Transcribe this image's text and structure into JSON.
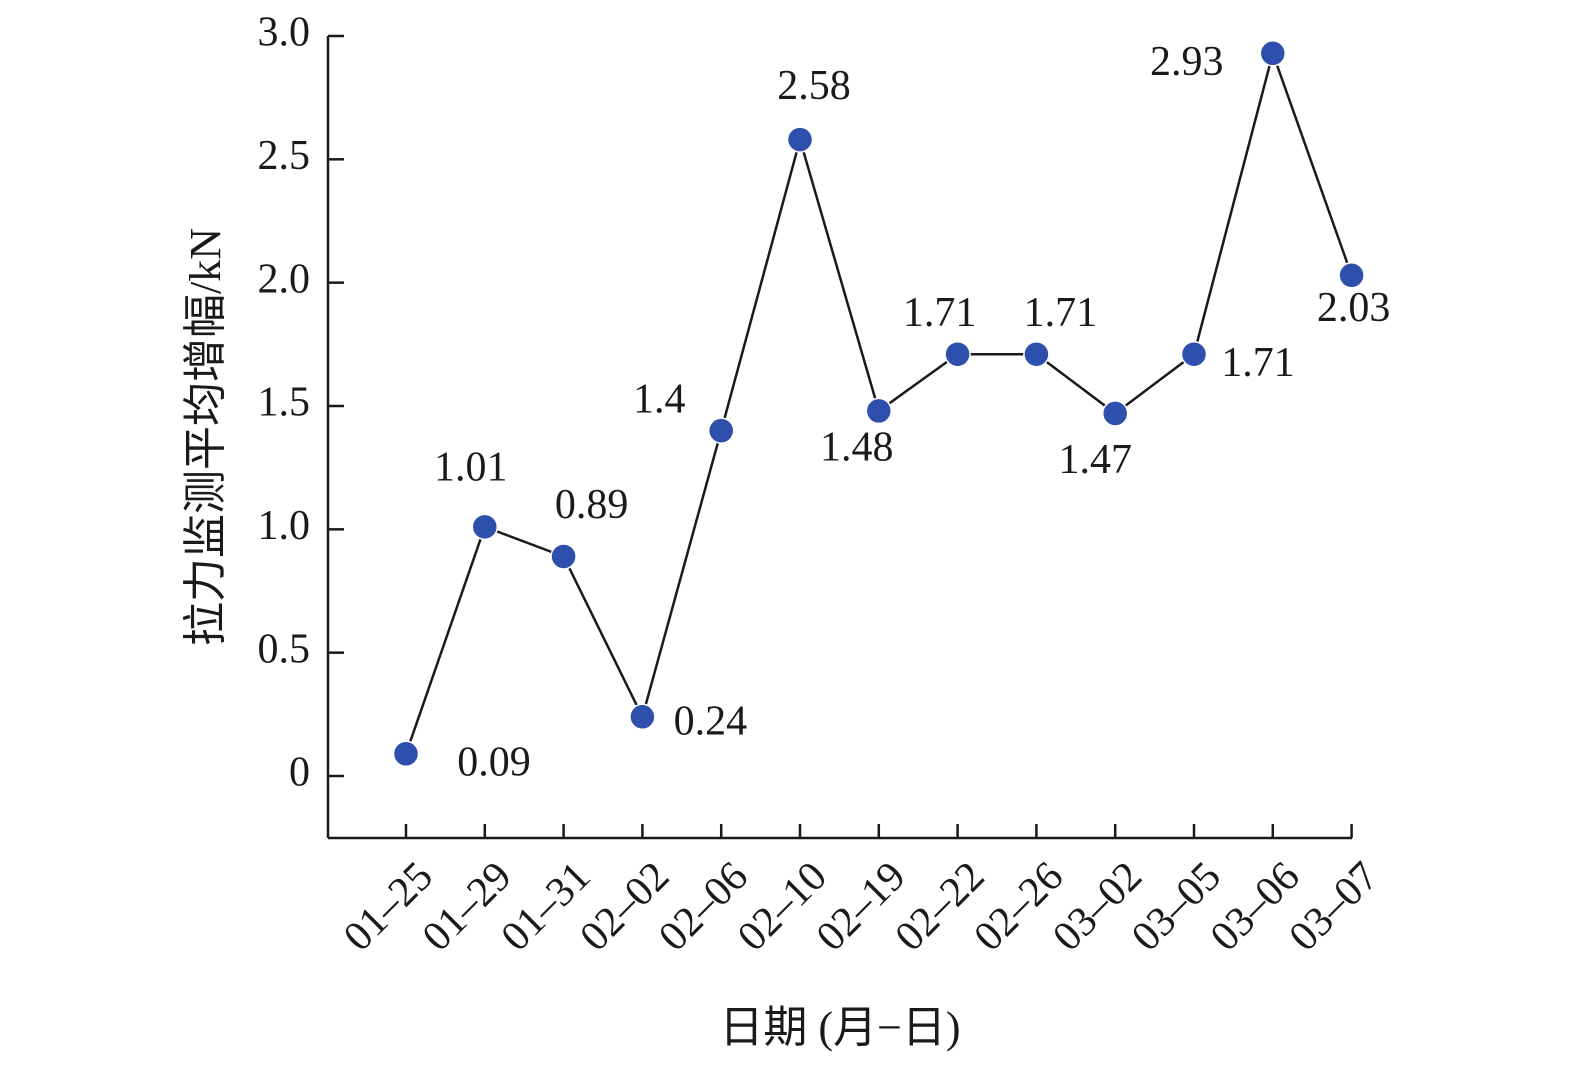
{
  "chart_data": {
    "type": "line",
    "xlabel": "日期 (月−日)",
    "ylabel": "拉力监测平均增幅/kN",
    "categories": [
      "01–25",
      "01–29",
      "01–31",
      "02–02",
      "02–06",
      "02–10",
      "02–19",
      "02–22",
      "02–26",
      "03–02",
      "03–05",
      "03–06",
      "03–07"
    ],
    "series": [
      {
        "values": [
          0.09,
          1.01,
          0.89,
          0.24,
          1.4,
          2.58,
          1.48,
          1.71,
          1.71,
          1.47,
          1.71,
          2.93,
          2.03
        ],
        "labels": [
          "0.09",
          "1.01",
          "0.89",
          "0.24",
          "1.4",
          "2.58",
          "1.48",
          "1.71",
          "1.71",
          "1.47",
          "1.71",
          "2.93",
          "2.03"
        ],
        "color": "#2f4fad"
      }
    ],
    "ylim": [
      -0.25,
      3.0
    ],
    "yticks": [
      0,
      0.5,
      1.0,
      1.5,
      2.0,
      2.5,
      3.0
    ],
    "ytick_labels": [
      "0",
      "0.5",
      "1.0",
      "1.5",
      "2.0",
      "2.5",
      "3.0"
    ],
    "grid": false,
    "legend": "none"
  }
}
